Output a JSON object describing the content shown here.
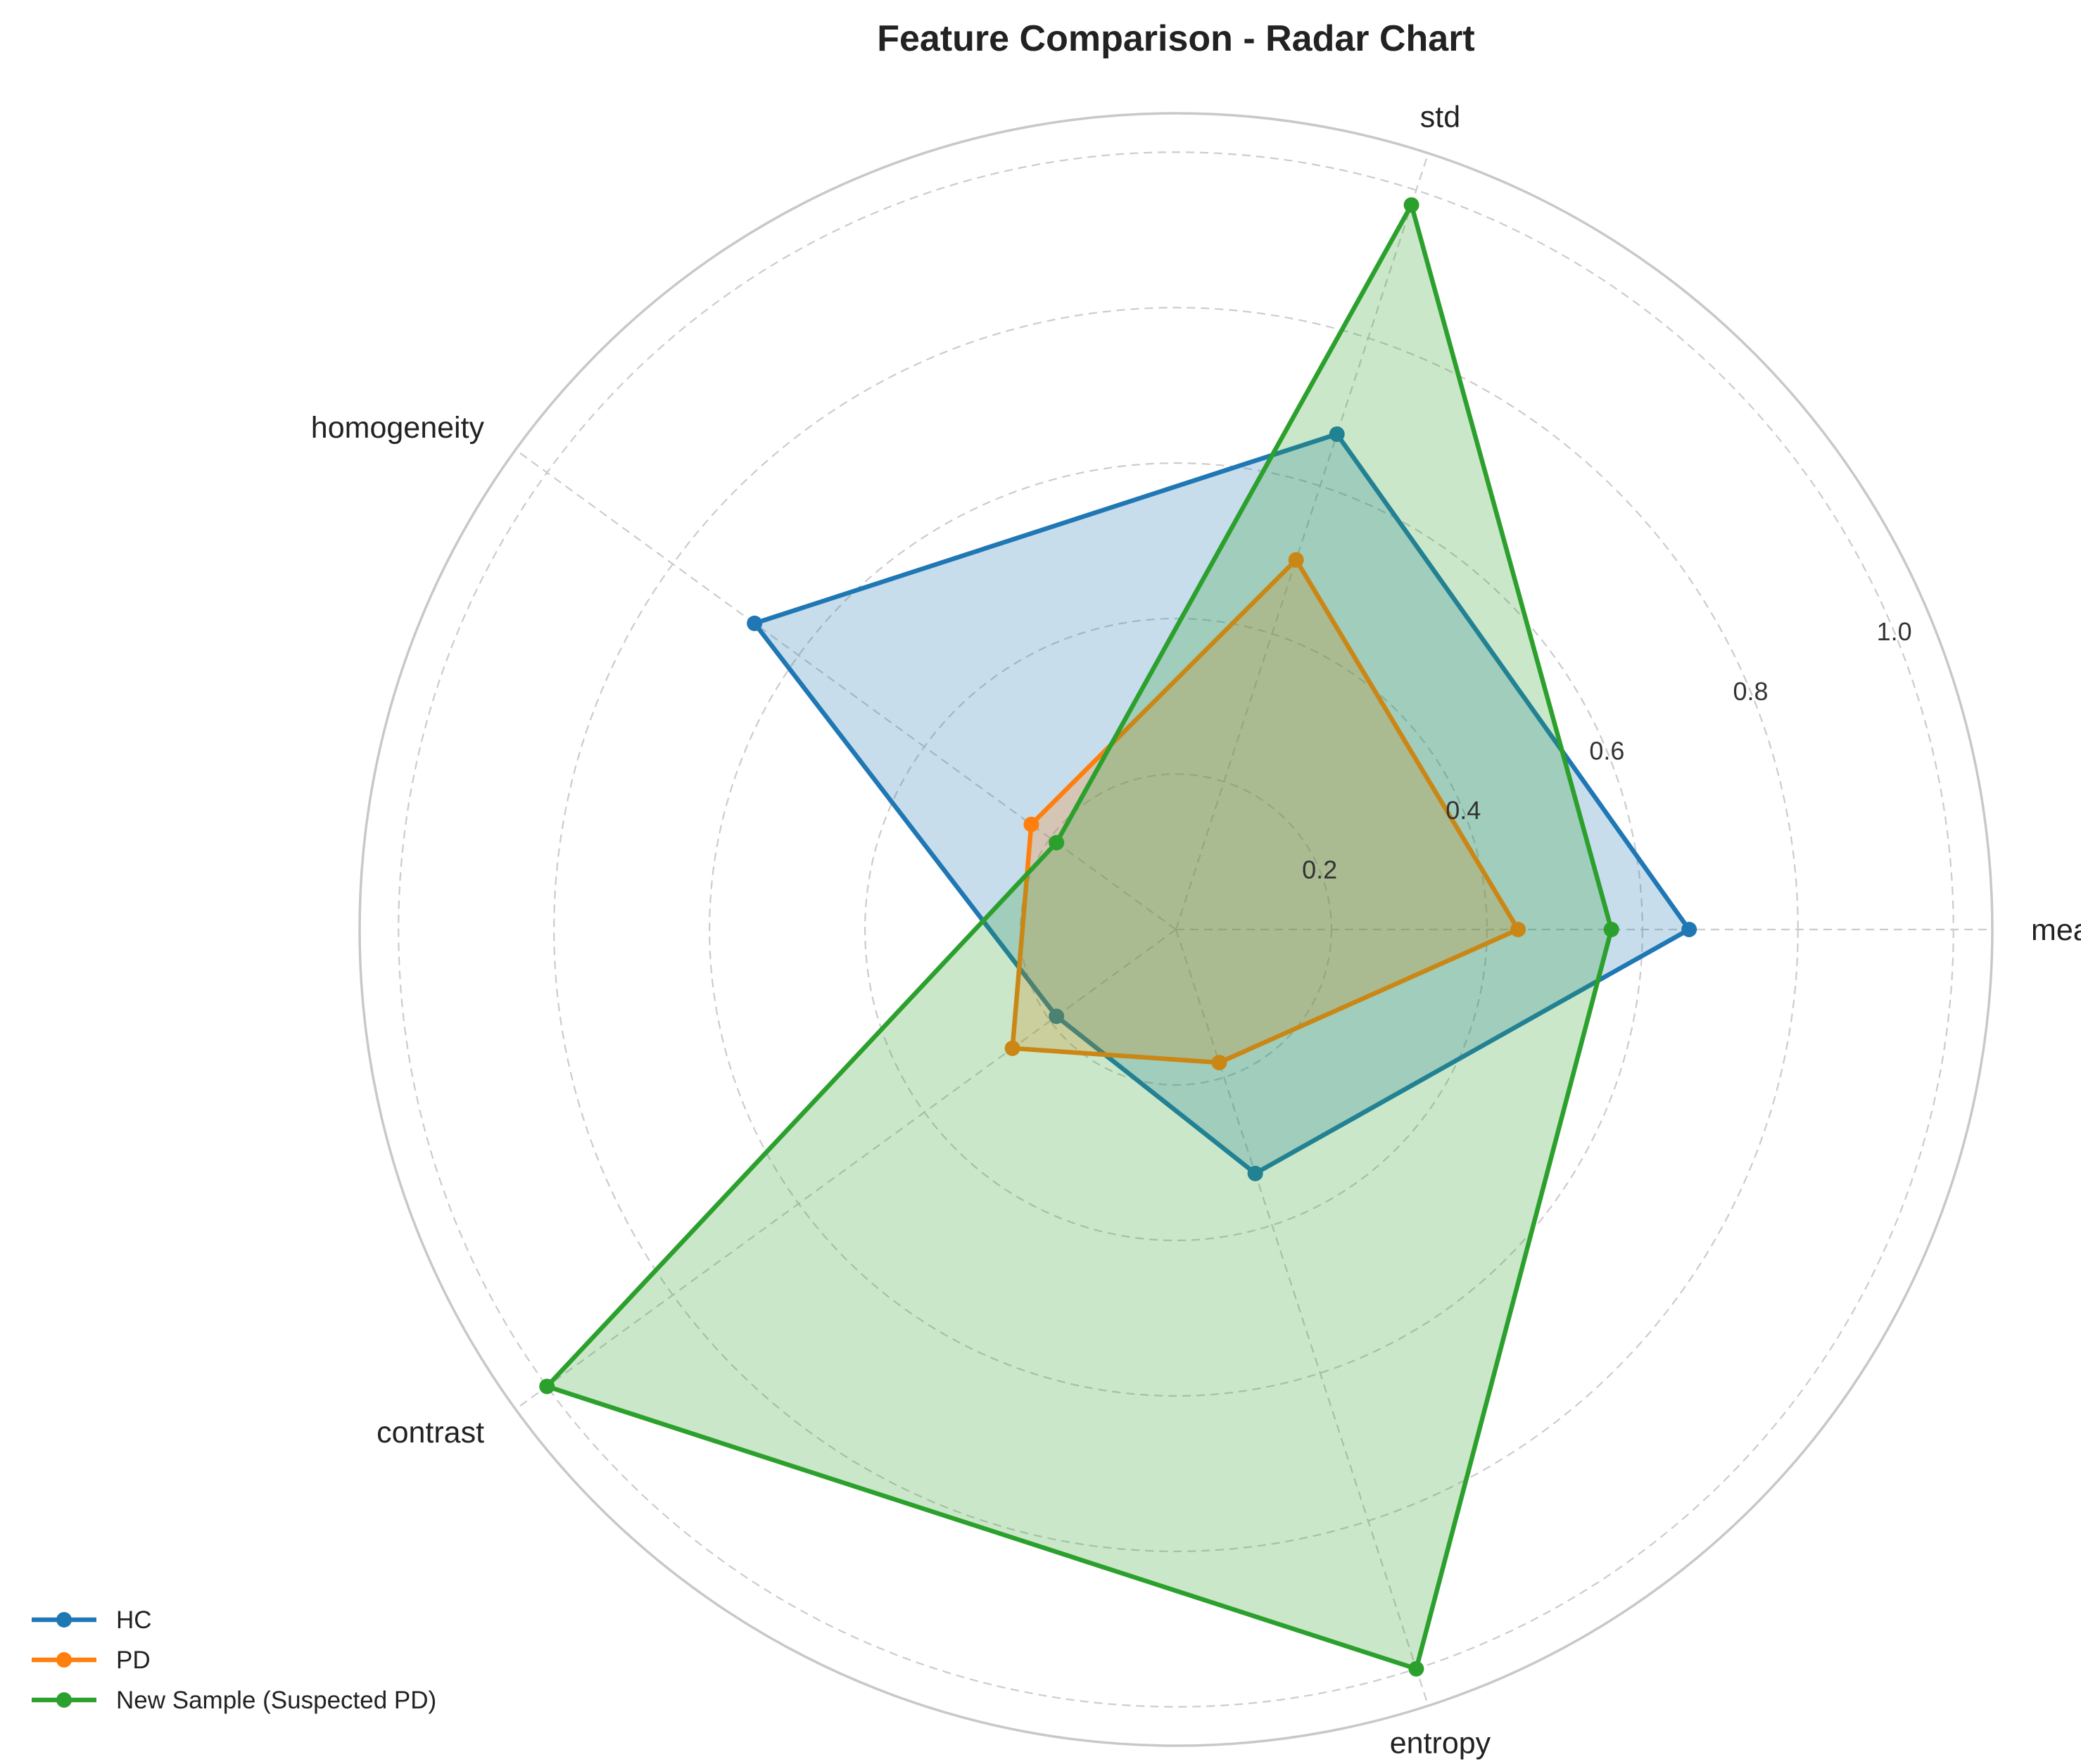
{
  "chart_data": {
    "type": "radar",
    "title": "Feature Comparison - Radar Chart",
    "axes": [
      "mean",
      "std",
      "homogeneity",
      "contrast",
      "entropy"
    ],
    "axis_order_note": "",
    "radial_ticks": [
      "0.2",
      "0.4",
      "0.6",
      "0.8",
      "1.0"
    ],
    "rlim": [
      0,
      1.05
    ],
    "grid": true,
    "legend_position": "bottom-left",
    "series": [
      {
        "name": "HC",
        "color": "#1f77b4",
        "values": {
          "mean": 0.66,
          "std": 0.67,
          "entropy": 0.33,
          "contrast": 0.19,
          "homogeneity": 0.67
        }
      },
      {
        "name": "PD",
        "color": "#ff7f0e",
        "values": {
          "mean": 0.44,
          "std": 0.5,
          "entropy": 0.18,
          "contrast": 0.26,
          "homogeneity": 0.23
        }
      },
      {
        "name": "New Sample (Suspected PD)",
        "color": "#2ca02c",
        "values": {
          "mean": 0.56,
          "std": 0.98,
          "entropy": 1.0,
          "contrast": 1.0,
          "homogeneity": 0.19
        }
      }
    ]
  }
}
